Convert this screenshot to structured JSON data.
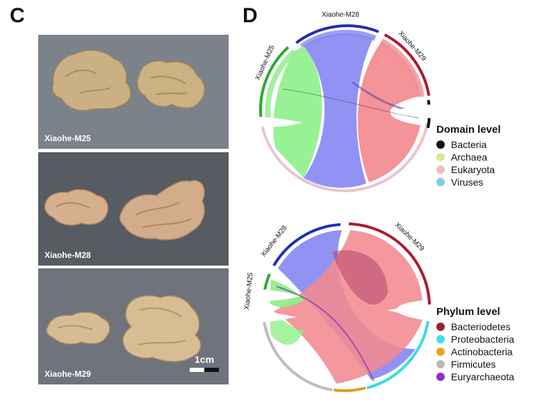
{
  "panels": {
    "c_label": "C",
    "d_label": "D"
  },
  "photos": [
    {
      "caption": "Xiaohe-M25"
    },
    {
      "caption": "Xiaohe-M28"
    },
    {
      "caption": "Xiaohe-M29"
    }
  ],
  "scale_bar": {
    "label": "1cm"
  },
  "chord_domain": {
    "samples": [
      "Xiaohe-M28",
      "Xiaohe-M25",
      "Xiaohe-M29"
    ],
    "legend_title": "Domain level",
    "legend": [
      {
        "name": "Bacteria",
        "color": "#111111"
      },
      {
        "name": "Archaea",
        "color": "#e2e48f"
      },
      {
        "name": "Eukaryota",
        "color": "#f5b8c6"
      },
      {
        "name": "Viruses",
        "color": "#86c9ea"
      }
    ]
  },
  "chord_phylum": {
    "samples": [
      "Xiaohe-M28",
      "Xiaohe-M25",
      "Xiaohe-M29"
    ],
    "legend_title": "Phylum level",
    "legend": [
      {
        "name": "Bacteriodetes",
        "color": "#9b1f2e"
      },
      {
        "name": "Proteobacteria",
        "color": "#3fe0ee"
      },
      {
        "name": "Actinobacteria",
        "color": "#f0a020"
      },
      {
        "name": "Firmicutes",
        "color": "#b8b8b8"
      },
      {
        "name": "Euryarchaeota",
        "color": "#8a2fd0"
      }
    ]
  },
  "colors": {
    "m25": "#8ee87a",
    "m28": "#8a8af0",
    "m29": "#f08a8e"
  }
}
